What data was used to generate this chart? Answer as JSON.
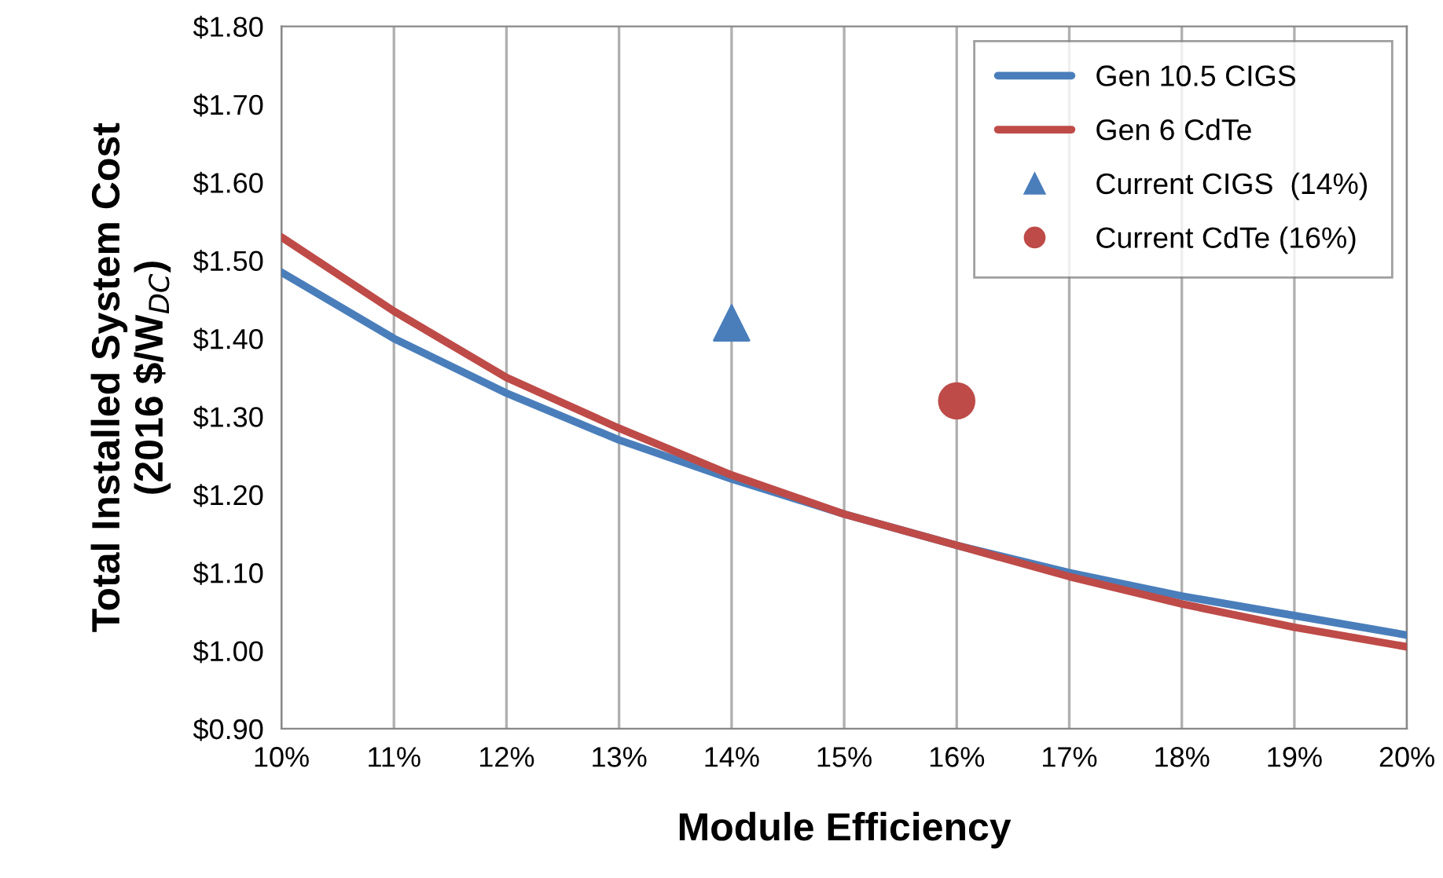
{
  "chart_data": {
    "type": "line",
    "xlabel": "Module Efficiency",
    "ylabel": "Total Installed System Cost\n(2016 $/W$_{DC}$)",
    "x": [
      10,
      11,
      12,
      13,
      14,
      15,
      16,
      17,
      18,
      19,
      20
    ],
    "series": [
      {
        "name": "Gen 10.5 CIGS",
        "color": "#4a7ebb",
        "marker": "none",
        "values": [
          1.485,
          1.4,
          1.33,
          1.27,
          1.22,
          1.175,
          1.135,
          1.1,
          1.07,
          1.045,
          1.02
        ]
      },
      {
        "name": "Gen 6 CdTe",
        "color": "#be4b48",
        "marker": "none",
        "values": [
          1.53,
          1.435,
          1.35,
          1.285,
          1.225,
          1.175,
          1.135,
          1.095,
          1.06,
          1.03,
          1.005
        ]
      },
      {
        "name": "Current CIGS  (14%)",
        "type": "scatter",
        "color": "#4a7ebb",
        "marker": "triangle",
        "x": [
          14
        ],
        "values": [
          1.42
        ]
      },
      {
        "name": "Current CdTe (16%)",
        "type": "scatter",
        "color": "#be4b48",
        "marker": "circle",
        "x": [
          16
        ],
        "values": [
          1.32
        ]
      }
    ],
    "xlim": [
      10,
      20
    ],
    "ylim": [
      0.9,
      1.8
    ],
    "xticks": [
      {
        "value": 10,
        "label": "10%"
      },
      {
        "value": 11,
        "label": "11%"
      },
      {
        "value": 12,
        "label": "12%"
      },
      {
        "value": 13,
        "label": "13%"
      },
      {
        "value": 14,
        "label": "14%"
      },
      {
        "value": 15,
        "label": "15%"
      },
      {
        "value": 16,
        "label": "16%"
      },
      {
        "value": 17,
        "label": "17%"
      },
      {
        "value": 18,
        "label": "18%"
      },
      {
        "value": 19,
        "label": "19%"
      },
      {
        "value": 20,
        "label": "20%"
      }
    ],
    "yticks": [
      {
        "value": 0.9,
        "label": "$0.90"
      },
      {
        "value": 1.0,
        "label": "$1.00"
      },
      {
        "value": 1.1,
        "label": "$1.10"
      },
      {
        "value": 1.2,
        "label": "$1.20"
      },
      {
        "value": 1.3,
        "label": "$1.30"
      },
      {
        "value": 1.4,
        "label": "$1.40"
      },
      {
        "value": 1.5,
        "label": "$1.50"
      },
      {
        "value": 1.6,
        "label": "$1.60"
      },
      {
        "value": 1.7,
        "label": "$1.70"
      },
      {
        "value": 1.8,
        "label": "$1.80"
      }
    ],
    "grid": "x",
    "legend": "top right"
  }
}
